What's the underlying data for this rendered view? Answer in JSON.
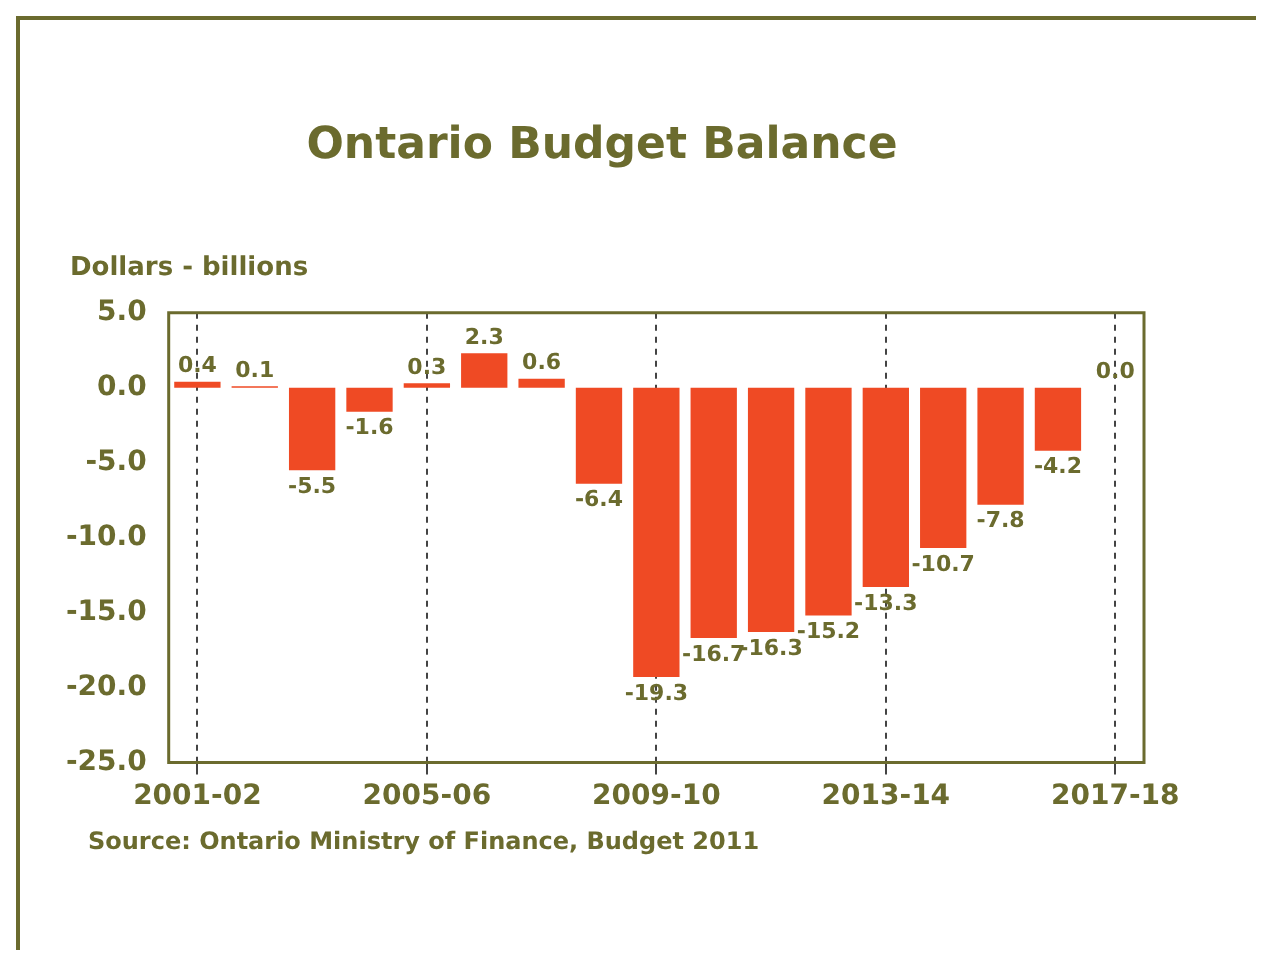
{
  "chart_data": {
    "type": "bar",
    "title": "Ontario Budget Balance",
    "ylabel": "Dollars - billions",
    "categories": [
      "2001-02",
      null,
      null,
      null,
      "2005-06",
      null,
      null,
      null,
      "2009-10",
      null,
      null,
      null,
      "2013-14",
      null,
      null,
      null,
      "2017-18"
    ],
    "values": [
      0.4,
      0.1,
      -5.5,
      -1.6,
      0.3,
      2.3,
      0.6,
      -6.4,
      -19.3,
      -16.7,
      -16.3,
      -15.2,
      -13.3,
      -10.7,
      -7.8,
      -4.2,
      0.0
    ],
    "value_labels": [
      "0.4",
      "0.1",
      "-5.5",
      "-1.6",
      "0.3",
      "2.3",
      "0.6",
      "-6.4",
      "-19.3",
      "-16.7",
      "-16.3",
      "-15.2",
      "-13.3",
      "-10.7",
      "-7.8",
      "-4.2",
      "0.0"
    ],
    "color": "#ef4a24",
    "ylim": [
      -25,
      5
    ],
    "yticks": [
      {
        "value": 5,
        "label": "5.0"
      },
      {
        "value": 0,
        "label": "0.0"
      },
      {
        "value": -5,
        "label": "-5.0"
      },
      {
        "value": -10,
        "label": "-10.0"
      },
      {
        "value": -15,
        "label": "-15.0"
      },
      {
        "value": -20,
        "label": "-20.0"
      },
      {
        "value": -25,
        "label": "-25.0"
      }
    ],
    "grid": "x",
    "annotations": [
      "Source: Ontario Ministry of Finance, Budget 2011"
    ]
  }
}
